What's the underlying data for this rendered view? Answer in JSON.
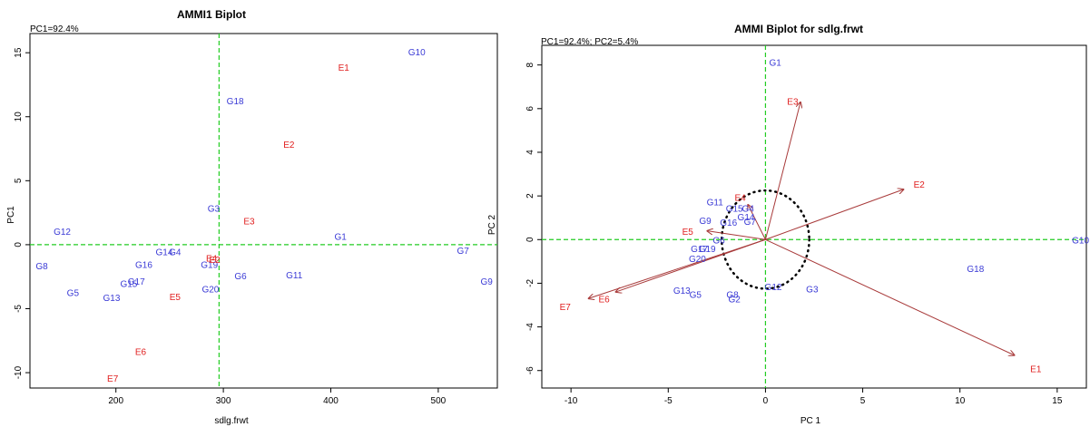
{
  "colors": {
    "genotype": "#3b3bd6",
    "environment": "#e02020",
    "arrow": "#a83a3a",
    "refline": "#22cc22",
    "frame": "#000000",
    "circle": "#000000"
  },
  "chart_data": [
    {
      "type": "scatter",
      "title": "AMMI1 Biplot",
      "annotation": "PC1=92.4%",
      "xlabel": "sdlg.frwt",
      "ylabel": "PC1",
      "xlim": [
        120,
        555
      ],
      "ylim": [
        -11.2,
        16.5
      ],
      "xticks": [
        200,
        300,
        400,
        500
      ],
      "yticks": [
        -10,
        -5,
        0,
        5,
        10,
        15
      ],
      "ref_x": 296,
      "ref_y": 0,
      "genotypes": [
        {
          "label": "G10",
          "x": 480,
          "y": 15.0
        },
        {
          "label": "G18",
          "x": 311,
          "y": 11.2
        },
        {
          "label": "G3",
          "x": 291,
          "y": 2.8
        },
        {
          "label": "G12",
          "x": 150,
          "y": 1.0
        },
        {
          "label": "G1",
          "x": 409,
          "y": 0.6
        },
        {
          "label": "G7",
          "x": 523,
          "y": -0.5
        },
        {
          "label": "G14",
          "x": 245,
          "y": -0.6
        },
        {
          "label": "G4",
          "x": 255,
          "y": -0.6
        },
        {
          "label": "G8",
          "x": 131,
          "y": -1.7
        },
        {
          "label": "G16",
          "x": 226,
          "y": -1.6
        },
        {
          "label": "G19",
          "x": 287,
          "y": -1.6
        },
        {
          "label": "G6",
          "x": 316,
          "y": -2.5
        },
        {
          "label": "G11",
          "x": 366,
          "y": -2.4
        },
        {
          "label": "G9",
          "x": 545,
          "y": -2.9
        },
        {
          "label": "G17",
          "x": 219,
          "y": -2.9
        },
        {
          "label": "G15",
          "x": 212,
          "y": -3.1
        },
        {
          "label": "G5",
          "x": 160,
          "y": -3.8
        },
        {
          "label": "G13",
          "x": 196,
          "y": -4.2
        },
        {
          "label": "G20",
          "x": 288,
          "y": -3.5
        }
      ],
      "environments": [
        {
          "label": "E1",
          "x": 412,
          "y": 13.8
        },
        {
          "label": "E2",
          "x": 361,
          "y": 7.8
        },
        {
          "label": "E3",
          "x": 324,
          "y": 1.8
        },
        {
          "label": "E4",
          "x": 289,
          "y": -1.1
        },
        {
          "label": "E2",
          "x": 292,
          "y": -1.2
        },
        {
          "label": "E5",
          "x": 255,
          "y": -4.1
        },
        {
          "label": "E6",
          "x": 223,
          "y": -8.4
        },
        {
          "label": "E7",
          "x": 197,
          "y": -10.5
        }
      ]
    },
    {
      "type": "scatter",
      "title": "AMMI Biplot for sdlg.frwt",
      "annotation": "PC1=92.4%; PC2=5.4%",
      "xlabel": "PC 1",
      "ylabel": "PC 2",
      "xlim": [
        -11.5,
        16.5
      ],
      "ylim": [
        -6.8,
        8.9
      ],
      "xticks": [
        -10,
        -5,
        0,
        5,
        10,
        15
      ],
      "yticks": [
        -6,
        -4,
        -2,
        0,
        2,
        4,
        6,
        8
      ],
      "ref_x": 0,
      "ref_y": 0,
      "circle_radius": 2.25,
      "genotypes": [
        {
          "label": "G1",
          "x": 0.5,
          "y": 8.1
        },
        {
          "label": "G11",
          "x": -2.6,
          "y": 1.7
        },
        {
          "label": "G15",
          "x": -1.6,
          "y": 1.4
        },
        {
          "label": "G4",
          "x": -0.9,
          "y": 1.4
        },
        {
          "label": "G14",
          "x": -1.0,
          "y": 1.0
        },
        {
          "label": "G9",
          "x": -3.1,
          "y": 0.85
        },
        {
          "label": "G16",
          "x": -1.9,
          "y": 0.75
        },
        {
          "label": "G7",
          "x": -0.8,
          "y": 0.8
        },
        {
          "label": "G10",
          "x": 16.2,
          "y": -0.05
        },
        {
          "label": "G6",
          "x": -2.4,
          "y": -0.05
        },
        {
          "label": "G17",
          "x": -3.4,
          "y": -0.45
        },
        {
          "label": "G19",
          "x": -3.0,
          "y": -0.45
        },
        {
          "label": "G20",
          "x": -3.5,
          "y": -0.9
        },
        {
          "label": "G18",
          "x": 10.8,
          "y": -1.35
        },
        {
          "label": "G2",
          "x": -1.6,
          "y": -2.75
        },
        {
          "label": "G12",
          "x": 0.4,
          "y": -2.2
        },
        {
          "label": "G3",
          "x": 2.4,
          "y": -2.3
        },
        {
          "label": "G13",
          "x": -4.3,
          "y": -2.35
        },
        {
          "label": "G5",
          "x": -3.6,
          "y": -2.55
        },
        {
          "label": "G8",
          "x": -1.7,
          "y": -2.55
        }
      ],
      "environments": [
        {
          "label": "E3",
          "x": 1.4,
          "y": 6.3,
          "tip": [
            1.8,
            6.3
          ]
        },
        {
          "label": "E2",
          "x": 7.9,
          "y": 2.5,
          "tip": [
            7.1,
            2.3
          ]
        },
        {
          "label": "E4",
          "x": -1.3,
          "y": 1.9,
          "tip": [
            -0.9,
            1.6
          ]
        },
        {
          "label": "E5",
          "x": -4.0,
          "y": 0.35,
          "tip": [
            -3.0,
            0.4
          ]
        },
        {
          "label": "E6",
          "x": -8.3,
          "y": -2.75,
          "tip": [
            -7.7,
            -2.4
          ]
        },
        {
          "label": "E7",
          "x": -10.3,
          "y": -3.1,
          "tip": [
            -9.1,
            -2.7
          ]
        },
        {
          "label": "E1",
          "x": 13.9,
          "y": -5.95,
          "tip": [
            12.8,
            -5.3
          ]
        }
      ]
    }
  ]
}
